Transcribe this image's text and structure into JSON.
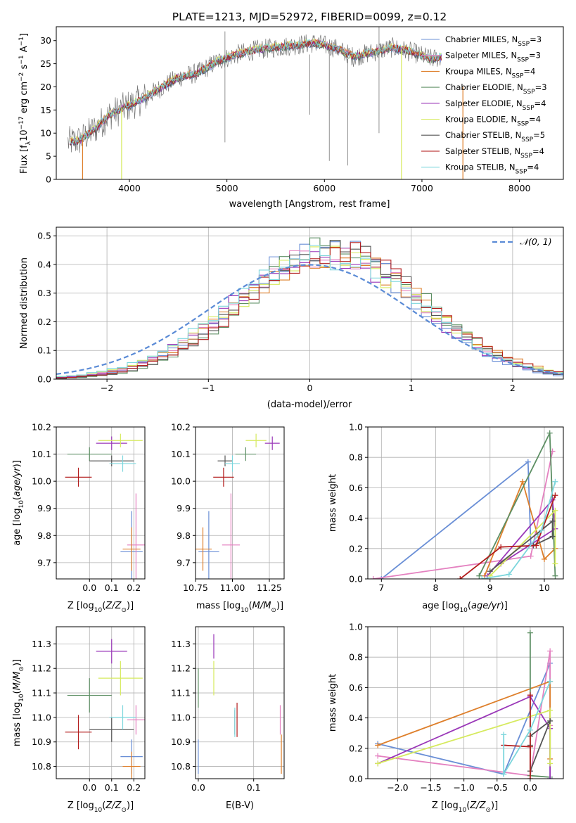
{
  "page_title": "PLATE=1213, MJD=52972, FIBERID=0099, z=0.12",
  "colors": {
    "Chabrier MILES": "#6a8fd6",
    "Salpeter MILES": "#e481c0",
    "Kroupa MILES": "#de7f2b",
    "Chabrier ELODIE": "#5d8f64",
    "Salpeter ELODIE": "#9a37b8",
    "Kroupa ELODIE": "#d6ea5e",
    "Chabrier STELIB": "#555555",
    "Salpeter STELIB": "#b31d1d",
    "Kroupa STELIB": "#7cd6dc",
    "normal": "#5b8bd6",
    "spectrum_gray": "#777777"
  },
  "chart_data": [
    {
      "id": "spectrum",
      "type": "line",
      "title": "PLATE=1213, MJD=52972, FIBERID=0099, z=0.12",
      "xlabel": "wavelength [Angstrom, rest frame]",
      "ylabel": "Flux [f_λ 10^-17 erg cm^-2 s^-1 A^-1]",
      "xlim": [
        3250,
        8450
      ],
      "ylim": [
        0,
        33
      ],
      "xticks": [
        4000,
        5000,
        6000,
        7000,
        8000
      ],
      "yticks": [
        0,
        5,
        10,
        15,
        20,
        25,
        30
      ],
      "grid": false,
      "legend_position": "top-right",
      "legend": [
        "Chabrier MILES, N_SSP=3",
        "Salpeter MILES, N_SSP=3",
        "Kroupa MILES, N_SSP=4",
        "Chabrier ELODIE, N_SSP=3",
        "Salpeter ELODIE, N_SSP=4",
        "Kroupa ELODIE, N_SSP=4",
        "Chabrier STELIB, N_SSP=5",
        "Salpeter STELIB, N_SSP=4",
        "Kroupa STELIB, N_SSP=4"
      ],
      "continuum": {
        "x": [
          3370,
          3500,
          3650,
          3800,
          3950,
          4100,
          4300,
          4500,
          4700,
          4900,
          5100,
          5300,
          5500,
          5700,
          5900,
          6100,
          6300,
          6500,
          6700,
          6900,
          7100,
          7200
        ],
        "y": [
          8,
          8.5,
          11,
          14,
          15.5,
          17,
          19.5,
          22,
          23,
          25.5,
          27,
          28,
          28.5,
          29,
          29.5,
          28.5,
          26.5,
          27.5,
          28.5,
          27.5,
          26,
          26.5
        ]
      },
      "data_spikes": [
        {
          "x": 4980,
          "low": 8,
          "high": 32
        },
        {
          "x": 6240,
          "low": 3,
          "high": 26
        },
        {
          "x": 6050,
          "low": 4,
          "high": 28
        },
        {
          "x": 5850,
          "low": 14,
          "high": 27
        },
        {
          "x": 6560,
          "low": 10,
          "high": 33
        }
      ],
      "model_dropouts": [
        {
          "x": 3520,
          "series": "Kroupa MILES"
        },
        {
          "x": 3920,
          "series": "Kroupa ELODIE"
        },
        {
          "x": 6790,
          "series": "Kroupa ELODIE"
        },
        {
          "x": 7420,
          "series": "Kroupa MILES"
        }
      ]
    },
    {
      "id": "residuals",
      "type": "line",
      "xlabel": "(data-model)/error",
      "ylabel": "Normed distribution",
      "xlim": [
        -2.5,
        2.5
      ],
      "ylim": [
        0,
        0.53
      ],
      "xticks": [
        -2,
        -1,
        0,
        1,
        2
      ],
      "yticks": [
        0.0,
        0.1,
        0.2,
        0.3,
        0.4,
        0.5
      ],
      "grid": true,
      "legend_position": "top-right",
      "legend": [
        "𝒩(0, 1)"
      ],
      "bin_width": 0.1,
      "series": [
        {
          "name": "Chabrier MILES"
        },
        {
          "name": "Salpeter MILES"
        },
        {
          "name": "Kroupa MILES"
        },
        {
          "name": "Chabrier ELODIE"
        },
        {
          "name": "Salpeter ELODIE"
        },
        {
          "name": "Kroupa ELODIE"
        },
        {
          "name": "Chabrier STELIB"
        },
        {
          "name": "Salpeter STELIB"
        },
        {
          "name": "Kroupa STELIB"
        }
      ]
    },
    {
      "id": "age_vs_Z",
      "type": "scatter",
      "xlabel": "Z [log10(Z/Z⊙)]",
      "ylabel": "age [log10(age/yr)]",
      "xlim": [
        -0.15,
        0.25
      ],
      "ylim": [
        9.64,
        10.2
      ],
      "xticks": [
        0.0,
        0.1,
        0.2
      ],
      "yticks": [
        9.7,
        9.8,
        9.9,
        10.0,
        10.1,
        10.2
      ],
      "grid": true,
      "points": [
        {
          "series": "Chabrier MILES",
          "x": 0.19,
          "y": 9.74,
          "xerr": 0.05,
          "yerr": 0.15
        },
        {
          "series": "Salpeter MILES",
          "x": 0.21,
          "y": 9.765,
          "xerr": 0.04,
          "yerr": 0.19
        },
        {
          "series": "Kroupa MILES",
          "x": 0.19,
          "y": 9.75,
          "xerr": 0.04,
          "yerr": 0.08
        },
        {
          "series": "Chabrier ELODIE",
          "x": 0.0,
          "y": 10.1,
          "xerr": 0.1,
          "yerr": 0.025
        },
        {
          "series": "Salpeter ELODIE",
          "x": 0.1,
          "y": 10.14,
          "xerr": 0.07,
          "yerr": 0.025
        },
        {
          "series": "Kroupa ELODIE",
          "x": 0.14,
          "y": 10.15,
          "xerr": 0.1,
          "yerr": 0.025
        },
        {
          "series": "Chabrier STELIB",
          "x": 0.1,
          "y": 10.075,
          "xerr": 0.1,
          "yerr": 0.02
        },
        {
          "series": "Salpeter STELIB",
          "x": -0.05,
          "y": 10.015,
          "xerr": 0.06,
          "yerr": 0.035
        },
        {
          "series": "Kroupa STELIB",
          "x": 0.15,
          "y": 10.065,
          "xerr": 0.06,
          "yerr": 0.03
        }
      ]
    },
    {
      "id": "age_vs_mass",
      "type": "scatter",
      "xlabel": "mass [log10(M/M⊙)]",
      "ylabel": "",
      "xlim": [
        10.75,
        11.35
      ],
      "ylim": [
        9.64,
        10.2
      ],
      "xticks": [
        10.75,
        11.0,
        11.25
      ],
      "yticks": [
        9.7,
        9.8,
        9.9,
        10.0,
        10.1,
        10.2
      ],
      "grid": true,
      "points": [
        {
          "series": "Chabrier MILES",
          "x": 10.84,
          "y": 9.74,
          "xerr": 0.07,
          "yerr": 0.15
        },
        {
          "series": "Salpeter MILES",
          "x": 10.99,
          "y": 9.765,
          "xerr": 0.06,
          "yerr": 0.19
        },
        {
          "series": "Kroupa MILES",
          "x": 10.8,
          "y": 9.75,
          "xerr": 0.06,
          "yerr": 0.08
        },
        {
          "series": "Chabrier ELODIE",
          "x": 11.09,
          "y": 10.1,
          "xerr": 0.07,
          "yerr": 0.025
        },
        {
          "series": "Salpeter ELODIE",
          "x": 11.27,
          "y": 10.14,
          "xerr": 0.05,
          "yerr": 0.025
        },
        {
          "series": "Kroupa ELODIE",
          "x": 11.16,
          "y": 10.15,
          "xerr": 0.07,
          "yerr": 0.025
        },
        {
          "series": "Chabrier STELIB",
          "x": 10.95,
          "y": 10.075,
          "xerr": 0.05,
          "yerr": 0.02
        },
        {
          "series": "Salpeter STELIB",
          "x": 10.94,
          "y": 10.015,
          "xerr": 0.07,
          "yerr": 0.035
        },
        {
          "series": "Kroupa STELIB",
          "x": 11.0,
          "y": 10.065,
          "xerr": 0.05,
          "yerr": 0.03
        }
      ]
    },
    {
      "id": "massweight_vs_age",
      "type": "line",
      "xlabel": "age [log10(age/yr)]",
      "ylabel": "mass weight",
      "xlim": [
        6.75,
        10.35
      ],
      "ylim": [
        0,
        1.0
      ],
      "xticks": [
        7,
        8,
        9,
        10
      ],
      "yticks": [
        0.0,
        0.2,
        0.4,
        0.6,
        0.8,
        1.0
      ],
      "grid": true,
      "series": [
        {
          "name": "Chabrier MILES",
          "x": [
            7.0,
            9.7,
            9.75
          ],
          "y": [
            0.0,
            0.77,
            0.23
          ]
        },
        {
          "name": "Salpeter MILES",
          "x": [
            6.85,
            9.75,
            10.15
          ],
          "y": [
            0.0,
            0.15,
            0.84
          ]
        },
        {
          "name": "Kroupa MILES",
          "x": [
            8.9,
            9.6,
            10.0,
            10.2
          ],
          "y": [
            0.02,
            0.64,
            0.13,
            0.2
          ]
        },
        {
          "name": "Chabrier ELODIE",
          "x": [
            8.8,
            10.1,
            10.2
          ],
          "y": [
            0.02,
            0.96,
            0.02
          ]
        },
        {
          "name": "Salpeter ELODIE",
          "x": [
            8.95,
            10.15,
            10.2,
            9.2
          ],
          "y": [
            0.02,
            0.52,
            0.33,
            0.1
          ]
        },
        {
          "name": "Kroupa ELODIE",
          "x": [
            9.0,
            10.2,
            10.2
          ],
          "y": [
            0.02,
            0.45,
            0.1
          ]
        },
        {
          "name": "Chabrier STELIB",
          "x": [
            9.0,
            10.15,
            10.15,
            9.8
          ],
          "y": [
            0.05,
            0.38,
            0.28,
            0.22
          ]
        },
        {
          "name": "Salpeter STELIB",
          "x": [
            8.45,
            9.2,
            9.85,
            10.2
          ],
          "y": [
            0.0,
            0.21,
            0.22,
            0.55
          ]
        },
        {
          "name": "Kroupa STELIB",
          "x": [
            8.85,
            9.35,
            9.95,
            10.2
          ],
          "y": [
            0.0,
            0.03,
            0.32,
            0.64
          ]
        }
      ]
    },
    {
      "id": "mass_vs_Z",
      "type": "scatter",
      "xlabel": "Z [log10(Z/Z⊙)]",
      "ylabel": "mass [log10(M/M⊙)]",
      "xlim": [
        -0.15,
        0.25
      ],
      "ylim": [
        10.75,
        11.37
      ],
      "xticks": [
        0.0,
        0.1,
        0.2
      ],
      "yticks": [
        10.8,
        10.9,
        11.0,
        11.1,
        11.2,
        11.3
      ],
      "grid": true,
      "points": [
        {
          "series": "Chabrier MILES",
          "x": 0.19,
          "y": 10.84,
          "xerr": 0.05,
          "yerr": 0.07
        },
        {
          "series": "Salpeter MILES",
          "x": 0.21,
          "y": 10.99,
          "xerr": 0.04,
          "yerr": 0.06
        },
        {
          "series": "Kroupa MILES",
          "x": 0.19,
          "y": 10.8,
          "xerr": 0.04,
          "yerr": 0.06
        },
        {
          "series": "Chabrier ELODIE",
          "x": 0.0,
          "y": 11.09,
          "xerr": 0.1,
          "yerr": 0.07
        },
        {
          "series": "Salpeter ELODIE",
          "x": 0.1,
          "y": 11.27,
          "xerr": 0.07,
          "yerr": 0.05
        },
        {
          "series": "Kroupa ELODIE",
          "x": 0.14,
          "y": 11.16,
          "xerr": 0.1,
          "yerr": 0.07
        },
        {
          "series": "Chabrier STELIB",
          "x": 0.1,
          "y": 10.95,
          "xerr": 0.1,
          "yerr": 0.05
        },
        {
          "series": "Salpeter STELIB",
          "x": -0.05,
          "y": 10.94,
          "xerr": 0.06,
          "yerr": 0.07
        },
        {
          "series": "Kroupa STELIB",
          "x": 0.15,
          "y": 11.0,
          "xerr": 0.06,
          "yerr": 0.05
        }
      ]
    },
    {
      "id": "mass_vs_ebv",
      "type": "scatter",
      "xlabel": "E(B-V)",
      "ylabel": "",
      "xlim": [
        -0.005,
        0.155
      ],
      "ylim": [
        10.75,
        11.37
      ],
      "xticks": [
        0.0,
        0.1
      ],
      "yticks": [
        10.8,
        10.9,
        11.0,
        11.1,
        11.2,
        11.3
      ],
      "grid": true,
      "points": [
        {
          "series": "Chabrier MILES",
          "x": 0.0,
          "y": 10.84,
          "xerr": 0,
          "yerr": 0.07
        },
        {
          "series": "Salpeter MILES",
          "x": 0.148,
          "y": 10.99,
          "xerr": 0,
          "yerr": 0.06
        },
        {
          "series": "Kroupa MILES",
          "x": 0.15,
          "y": 10.85,
          "xerr": 0,
          "yerr": 0.08
        },
        {
          "series": "Chabrier ELODIE",
          "x": 0.0,
          "y": 11.12,
          "xerr": 0,
          "yerr": 0.08
        },
        {
          "series": "Salpeter ELODIE",
          "x": 0.028,
          "y": 11.29,
          "xerr": 0,
          "yerr": 0.05
        },
        {
          "series": "Kroupa ELODIE",
          "x": 0.028,
          "y": 11.16,
          "xerr": 0,
          "yerr": 0.07
        },
        {
          "series": "Chabrier STELIB",
          "x": 0.066,
          "y": 10.98,
          "xerr": 0,
          "yerr": 0.05
        },
        {
          "series": "Salpeter STELIB",
          "x": 0.07,
          "y": 10.99,
          "xerr": 0,
          "yerr": 0.07
        },
        {
          "series": "Kroupa STELIB",
          "x": 0.066,
          "y": 10.98,
          "xerr": 0,
          "yerr": 0.06
        }
      ]
    },
    {
      "id": "massweight_vs_Z",
      "type": "line",
      "xlabel": "Z [log10(Z/Z⊙)]",
      "ylabel": "mass weight",
      "xlim": [
        -2.45,
        0.5
      ],
      "ylim": [
        0,
        1.0
      ],
      "xticks": [
        -2.0,
        -1.5,
        -1.0,
        -0.5,
        0.0
      ],
      "yticks": [
        0.0,
        0.2,
        0.4,
        0.6,
        0.8,
        1.0
      ],
      "grid": true,
      "series": [
        {
          "name": "Chabrier MILES",
          "x": [
            -2.3,
            -0.4,
            0.3,
            0.3
          ],
          "y": [
            0.23,
            0.03,
            0.76,
            0.0
          ]
        },
        {
          "name": "Salpeter MILES",
          "x": [
            -2.3,
            0.0,
            0.3,
            0.3
          ],
          "y": [
            0.15,
            0.02,
            0.84,
            0.35
          ]
        },
        {
          "name": "Kroupa MILES",
          "x": [
            -2.3,
            0.3,
            0.3
          ],
          "y": [
            0.22,
            0.64,
            0.13
          ]
        },
        {
          "name": "Chabrier ELODIE",
          "x": [
            0.0,
            0.0,
            0.3
          ],
          "y": [
            0.96,
            0.02,
            0.01
          ]
        },
        {
          "name": "Salpeter ELODIE",
          "x": [
            -2.3,
            0.0,
            0.3,
            0.3
          ],
          "y": [
            0.1,
            0.54,
            0.33,
            0.0
          ]
        },
        {
          "name": "Kroupa ELODIE",
          "x": [
            -2.3,
            0.3,
            0.3
          ],
          "y": [
            0.1,
            0.45,
            0.1
          ]
        },
        {
          "name": "Chabrier STELIB",
          "x": [
            0.0,
            0.3,
            0.0,
            0.0
          ],
          "y": [
            0.28,
            0.38,
            0.05,
            0.22
          ]
        },
        {
          "name": "Salpeter STELIB",
          "x": [
            -0.4,
            0.0,
            0.0,
            0.0
          ],
          "y": [
            0.22,
            0.21,
            0.0,
            0.55
          ]
        },
        {
          "name": "Kroupa STELIB",
          "x": [
            -0.4,
            -0.4,
            0.0,
            0.3
          ],
          "y": [
            0.29,
            0.03,
            0.32,
            0.64
          ]
        }
      ]
    }
  ]
}
